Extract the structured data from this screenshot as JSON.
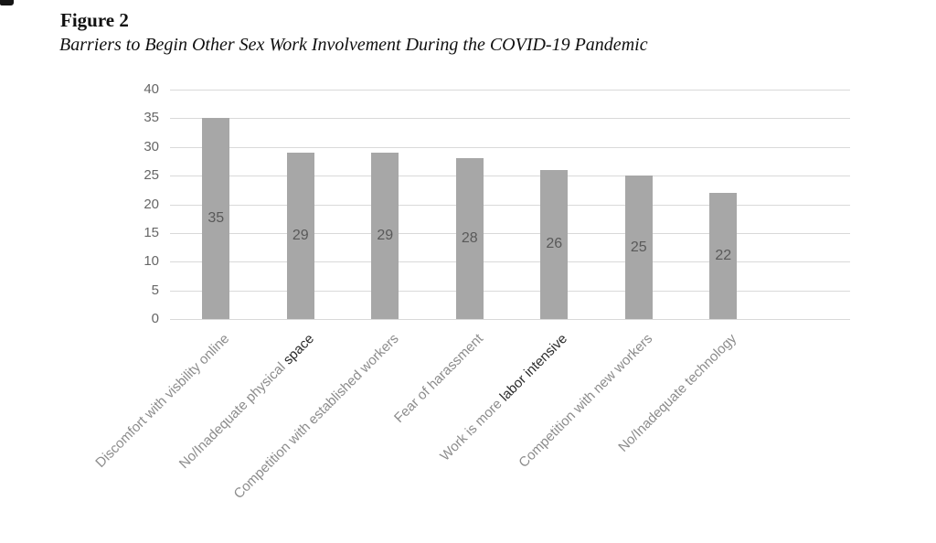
{
  "page": {
    "figure_label": "Figure 2",
    "figure_caption": "Barriers to Begin Other Sex Work Involvement During the COVID-19 Pandemic"
  },
  "chart_data": {
    "type": "bar",
    "title": "Figure 2",
    "subtitle": "Barriers to Begin Other Sex Work Involvement During the COVID-19 Pandemic",
    "categories": [
      "Discomfort with visbility online",
      "No/Inadequate physical space",
      "Competition with established workers",
      "Fear of harassment",
      "Work is more labor intensive",
      "Competition with new workers",
      "No/Inadequate technology"
    ],
    "category_dark_parts": [
      "",
      "space",
      "",
      "",
      "labor intensive",
      "",
      ""
    ],
    "values": [
      35,
      29,
      29,
      28,
      26,
      25,
      22
    ],
    "ylim": [
      0,
      40
    ],
    "yticks": [
      0,
      5,
      10,
      15,
      20,
      25,
      30,
      35,
      40
    ],
    "xlabel": "",
    "ylabel": "",
    "legend": "none",
    "grid": true,
    "value_labels_position": "inside-center",
    "category_rotation_deg": 45,
    "colors": {
      "bar": "#a7a7a7",
      "gridline": "#d9d9d9",
      "ytick_text": "#666666",
      "bar_label_text": "#595959",
      "category_text": "#8c8c8c",
      "category_dark_text": "#2b2b2b"
    }
  }
}
